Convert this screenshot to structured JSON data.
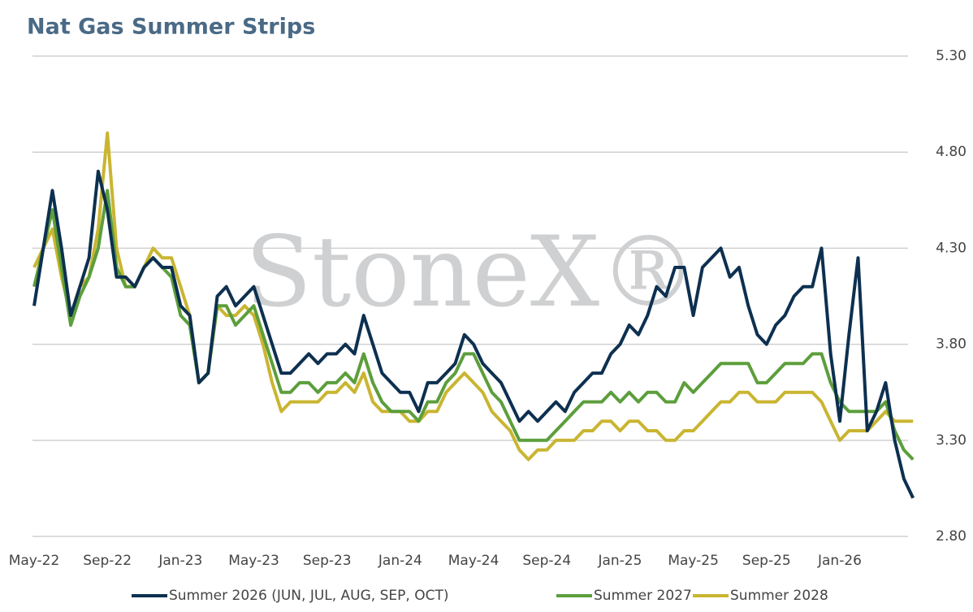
{
  "chart_data": {
    "type": "line",
    "title": "Nat Gas Summer Strips",
    "watermark": "StoneX®",
    "categories": [
      "May-22",
      null,
      null,
      null,
      null,
      null,
      null,
      null,
      "Sep-22",
      null,
      null,
      null,
      null,
      null,
      null,
      null,
      "Jan-23",
      null,
      null,
      null,
      null,
      null,
      null,
      null,
      "May-23",
      null,
      null,
      null,
      null,
      null,
      null,
      null,
      "Sep-23",
      null,
      null,
      null,
      null,
      null,
      null,
      null,
      "Jan-24",
      null,
      null,
      null,
      null,
      null,
      null,
      null,
      "May-24",
      null,
      null,
      null,
      null,
      null,
      null,
      null,
      "Sep-24",
      null,
      null,
      null,
      null,
      null,
      null,
      null,
      "Jan-25",
      null,
      null,
      null,
      null,
      null,
      null,
      null,
      "May-25",
      null,
      null,
      null,
      null,
      null,
      null,
      null,
      "Sep-25",
      null,
      null,
      null,
      null,
      null,
      null,
      null,
      "Jan-26",
      null,
      null,
      null,
      null,
      null,
      null,
      null,
      null
    ],
    "series": [
      {
        "name": "Summer 2026 (JUN, JUL, AUG, SEP, OCT)",
        "color": "#0d3050",
        "values": [
          4.0,
          4.3,
          4.6,
          4.3,
          3.95,
          4.1,
          4.25,
          4.7,
          4.5,
          4.15,
          4.15,
          4.1,
          4.2,
          4.25,
          4.2,
          4.2,
          4.0,
          3.95,
          3.6,
          3.65,
          4.05,
          4.1,
          4.0,
          4.05,
          4.1,
          3.95,
          3.8,
          3.65,
          3.65,
          3.7,
          3.75,
          3.7,
          3.75,
          3.75,
          3.8,
          3.75,
          3.95,
          3.8,
          3.65,
          3.6,
          3.55,
          3.55,
          3.45,
          3.6,
          3.6,
          3.65,
          3.7,
          3.85,
          3.8,
          3.7,
          3.65,
          3.6,
          3.5,
          3.4,
          3.45,
          3.4,
          3.45,
          3.5,
          3.45,
          3.55,
          3.6,
          3.65,
          3.65,
          3.75,
          3.8,
          3.9,
          3.85,
          3.95,
          4.1,
          4.05,
          4.2,
          4.2,
          3.95,
          4.2,
          4.25,
          4.3,
          4.15,
          4.2,
          4.0,
          3.85,
          3.8,
          3.9,
          3.95,
          4.05,
          4.1,
          4.1,
          4.3,
          3.75,
          3.4,
          3.85,
          4.25,
          3.35,
          3.45,
          3.6,
          3.3,
          3.1,
          3.0
        ]
      },
      {
        "name": "Summer 2027",
        "color": "#5c9e3c",
        "values": [
          4.1,
          4.3,
          4.5,
          4.2,
          3.9,
          4.05,
          4.15,
          4.3,
          4.6,
          4.2,
          4.1,
          4.1,
          4.2,
          4.25,
          4.2,
          4.15,
          3.95,
          3.9,
          3.6,
          3.65,
          4.0,
          4.0,
          3.9,
          3.95,
          4.0,
          3.85,
          3.7,
          3.55,
          3.55,
          3.6,
          3.6,
          3.55,
          3.6,
          3.6,
          3.65,
          3.6,
          3.75,
          3.6,
          3.5,
          3.45,
          3.45,
          3.45,
          3.4,
          3.5,
          3.5,
          3.6,
          3.65,
          3.75,
          3.75,
          3.65,
          3.55,
          3.5,
          3.4,
          3.3,
          3.3,
          3.3,
          3.3,
          3.35,
          3.4,
          3.45,
          3.5,
          3.5,
          3.5,
          3.55,
          3.5,
          3.55,
          3.5,
          3.55,
          3.55,
          3.5,
          3.5,
          3.6,
          3.55,
          3.6,
          3.65,
          3.7,
          3.7,
          3.7,
          3.7,
          3.6,
          3.6,
          3.65,
          3.7,
          3.7,
          3.7,
          3.75,
          3.75,
          3.6,
          3.5,
          3.45,
          3.45,
          3.45,
          3.45,
          3.5,
          3.35,
          3.25,
          3.2
        ]
      },
      {
        "name": "Summer 2028",
        "color": "#c9b531",
        "values": [
          4.2,
          4.3,
          4.4,
          4.15,
          3.95,
          4.1,
          4.15,
          4.4,
          4.9,
          4.3,
          4.1,
          4.1,
          4.2,
          4.3,
          4.25,
          4.25,
          4.1,
          3.95,
          3.6,
          3.65,
          4.0,
          3.95,
          3.95,
          4.0,
          3.95,
          3.8,
          3.6,
          3.45,
          3.5,
          3.5,
          3.5,
          3.5,
          3.55,
          3.55,
          3.6,
          3.55,
          3.65,
          3.5,
          3.45,
          3.45,
          3.45,
          3.4,
          3.4,
          3.45,
          3.45,
          3.55,
          3.6,
          3.65,
          3.6,
          3.55,
          3.45,
          3.4,
          3.35,
          3.25,
          3.2,
          3.25,
          3.25,
          3.3,
          3.3,
          3.3,
          3.35,
          3.35,
          3.4,
          3.4,
          3.35,
          3.4,
          3.4,
          3.35,
          3.35,
          3.3,
          3.3,
          3.35,
          3.35,
          3.4,
          3.45,
          3.5,
          3.5,
          3.55,
          3.55,
          3.5,
          3.5,
          3.5,
          3.55,
          3.55,
          3.55,
          3.55,
          3.5,
          3.4,
          3.3,
          3.35,
          3.35,
          3.35,
          3.4,
          3.45,
          3.4,
          3.4,
          3.4
        ]
      }
    ],
    "ylim": [
      2.8,
      5.3
    ],
    "yticks": [
      {
        "value": 2.8,
        "label": "2.80"
      },
      {
        "value": 3.3,
        "label": "3.30"
      },
      {
        "value": 3.8,
        "label": "3.80"
      },
      {
        "value": 4.3,
        "label": "4.30"
      },
      {
        "value": 4.8,
        "label": "4.80"
      },
      {
        "value": 5.3,
        "label": "5.30"
      }
    ],
    "grid": true
  }
}
